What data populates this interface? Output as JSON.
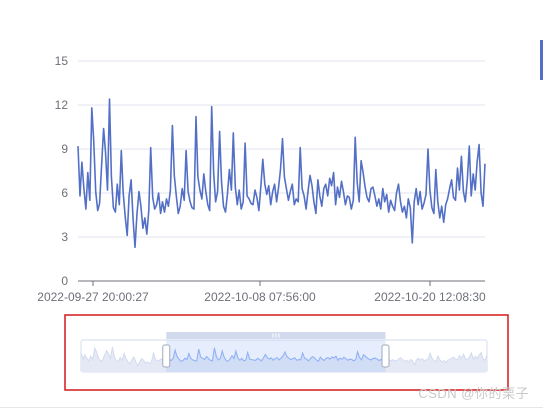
{
  "chart_data": {
    "type": "line",
    "y_ticks": [
      "0",
      "3",
      "6",
      "9",
      "12",
      "15"
    ],
    "ylim": [
      0,
      15
    ],
    "x_tick_labels": [
      "2022-09-27 20:00:27",
      "2022-10-08 07:56:00",
      "2022-10-20 12:08:30"
    ],
    "grid": true,
    "legend": "none",
    "dataZoom": {
      "type": "slider",
      "start_pct": 21,
      "end_pct": 75
    },
    "series": [
      {
        "color": "#5470c6",
        "values": [
          9.2,
          5.8,
          8.1,
          6.3,
          4.9,
          7.4,
          5.5,
          11.8,
          9.6,
          6.1,
          4.8,
          5.3,
          7.9,
          10.4,
          8.8,
          6.2,
          12.4,
          7.1,
          5.0,
          4.7,
          6.6,
          5.2,
          8.9,
          6.0,
          4.4,
          3.1,
          5.8,
          6.9,
          4.2,
          2.3,
          4.6,
          6.1,
          5.1,
          3.6,
          4.3,
          3.2,
          4.8,
          9.1,
          5.7,
          4.9,
          5.2,
          6.0,
          4.6,
          5.4,
          4.7,
          5.6,
          5.1,
          6.2,
          10.6,
          7.2,
          5.8,
          4.6,
          5.1,
          6.3,
          5.5,
          8.9,
          6.1,
          5.4,
          5.0,
          4.9,
          11.2,
          7.1,
          6.2,
          5.6,
          7.3,
          6.1,
          5.2,
          4.8,
          11.9,
          7.3,
          5.4,
          6.1,
          10.2,
          6.8,
          5.1,
          4.7,
          5.9,
          7.6,
          6.2,
          10.1,
          6.4,
          5.2,
          6.2,
          4.9,
          5.4,
          9.4,
          5.8,
          5.6,
          5.3,
          5.2,
          6.2,
          5.7,
          4.8,
          6.5,
          8.3,
          6.6,
          5.9,
          6.5,
          5.2,
          6.1,
          6.6,
          5.4,
          6.4,
          7.6,
          9.7,
          7.1,
          6.3,
          5.5,
          6.1,
          6.6,
          5.2,
          5.6,
          5.4,
          9.1,
          6.3,
          5.8,
          4.9,
          6.1,
          7.2,
          6.5,
          5.4,
          4.6,
          6.9,
          5.8,
          5.1,
          6.3,
          6.6,
          5.8,
          7.0,
          6.5,
          7.4,
          5.2,
          6.4,
          5.7,
          6.8,
          6.1,
          5.2,
          5.8,
          5.7,
          4.9,
          5.5,
          9.8,
          6.7,
          5.4,
          8.2,
          7.4,
          6.4,
          5.7,
          5.4,
          6.3,
          6.4,
          5.8,
          5.1,
          5.6,
          4.9,
          6.3,
          5.4,
          5.9,
          4.7,
          5.5,
          5.1,
          4.8,
          6.0,
          6.6,
          5.4,
          4.7,
          5.1,
          4.3,
          5.6,
          5.0,
          2.6,
          5.4,
          6.3,
          5.2,
          6.1,
          4.9,
          5.3,
          5.9,
          9.0,
          6.2,
          5.0,
          4.6,
          7.6,
          5.4,
          4.3,
          5.1,
          4.0,
          5.2,
          5.6,
          6.3,
          6.9,
          5.7,
          5.5,
          7.7,
          6.2,
          8.5,
          6.1,
          5.4,
          6.9,
          9.2,
          5.8,
          7.3,
          6.2,
          8.1,
          9.3,
          6.0,
          5.1,
          8.0
        ]
      }
    ]
  },
  "watermark": "CSDN @你的栗子"
}
